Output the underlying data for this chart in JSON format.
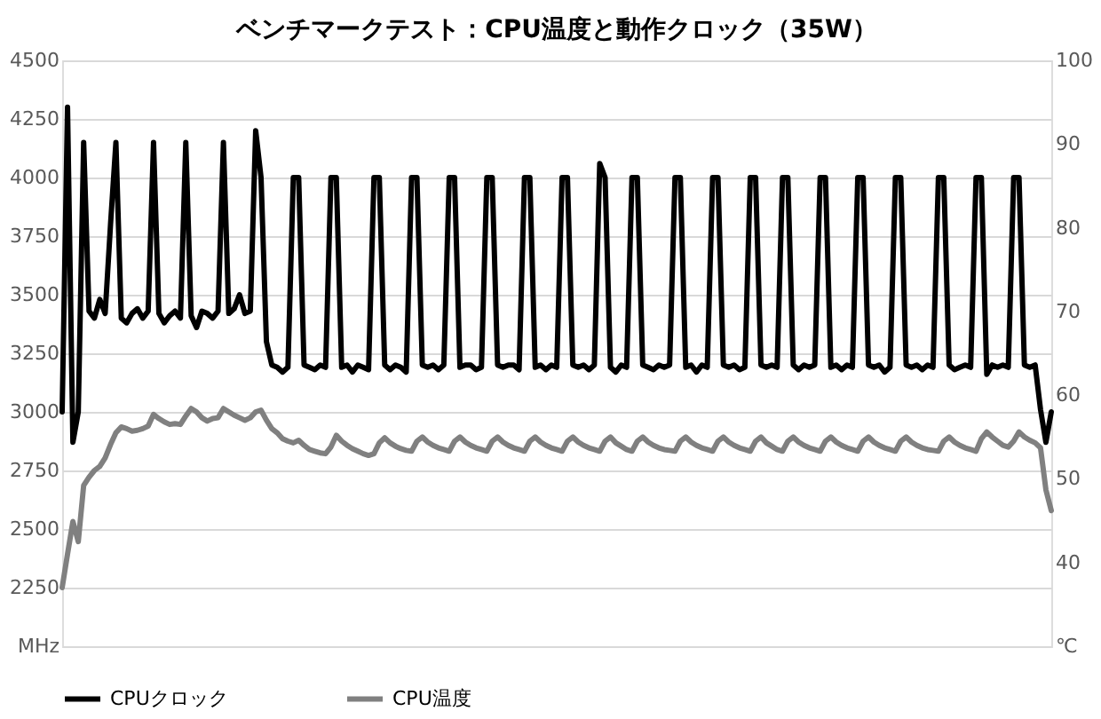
{
  "chart_data": {
    "type": "line",
    "title": "ベンチマークテスト：CPU温度と動作クロック（35W）",
    "categories": [
      null,
      null,
      null,
      null,
      null,
      null,
      null,
      null,
      null,
      null,
      null,
      null,
      null,
      null,
      null,
      null,
      null,
      null,
      null,
      null,
      null,
      null,
      null,
      null,
      null,
      null,
      null,
      null,
      null,
      null,
      null,
      null,
      null,
      null,
      null,
      null,
      null,
      null,
      null,
      null,
      null,
      null,
      null,
      null,
      null,
      null,
      null,
      null,
      null,
      null,
      null,
      null,
      null,
      null,
      null,
      null,
      null,
      null,
      null,
      null,
      null,
      null,
      null,
      null,
      null,
      null,
      null,
      null,
      null,
      null,
      null,
      null,
      null,
      null,
      null,
      null,
      null,
      null,
      null,
      null,
      null,
      null,
      null,
      null,
      null,
      null,
      null,
      null,
      null,
      null,
      null,
      null,
      null,
      null,
      null,
      null,
      null,
      null,
      null,
      null,
      null,
      null,
      null,
      null,
      null,
      null,
      null,
      null,
      null,
      null,
      null,
      null,
      null,
      null,
      null,
      null,
      null,
      null,
      null,
      null,
      null,
      null,
      null,
      null,
      null,
      null,
      null,
      null,
      null,
      null,
      null,
      null,
      null,
      null,
      null,
      null,
      null,
      null,
      null,
      null,
      null,
      null,
      null,
      null,
      null,
      null,
      null,
      null,
      null,
      null,
      null,
      null,
      null,
      null,
      null,
      null,
      null,
      null,
      null,
      null,
      null,
      null,
      null,
      null,
      null,
      null,
      null,
      null,
      null,
      null,
      null,
      null,
      null,
      null,
      null,
      null,
      null,
      null,
      null,
      null,
      null,
      null,
      null,
      null,
      null
    ],
    "series": [
      {
        "name": "CPUクロック",
        "color": "#000000",
        "values": [
          3000,
          4300,
          2870,
          3000,
          4150,
          3430,
          3400,
          3480,
          3420,
          3800,
          4150,
          3400,
          3380,
          3420,
          3440,
          3400,
          3430,
          4150,
          3420,
          3380,
          3410,
          3430,
          3400,
          4150,
          3410,
          3360,
          3430,
          3420,
          3400,
          3430,
          4150,
          3420,
          3440,
          3500,
          3420,
          3430,
          4200,
          4000,
          3300,
          3200,
          3190,
          3170,
          3190,
          4000,
          4000,
          3200,
          3190,
          3180,
          3200,
          3190,
          4000,
          4000,
          3190,
          3200,
          3170,
          3200,
          3190,
          3180,
          4000,
          4000,
          3200,
          3180,
          3200,
          3190,
          3170,
          4000,
          4000,
          3200,
          3190,
          3200,
          3180,
          3200,
          4000,
          4000,
          3190,
          3200,
          3200,
          3180,
          3190,
          4000,
          4000,
          3200,
          3190,
          3200,
          3200,
          3180,
          4000,
          4000,
          3190,
          3200,
          3180,
          3200,
          3190,
          4000,
          4000,
          3200,
          3190,
          3200,
          3180,
          3200,
          4060,
          4000,
          3190,
          3170,
          3200,
          3190,
          4000,
          4000,
          3200,
          3190,
          3180,
          3200,
          3190,
          3200,
          4000,
          4000,
          3190,
          3200,
          3170,
          3200,
          3190,
          4000,
          4000,
          3200,
          3190,
          3200,
          3180,
          3190,
          4000,
          4000,
          3200,
          3190,
          3200,
          3190,
          4000,
          4000,
          3200,
          3180,
          3200,
          3190,
          3200,
          4000,
          4000,
          3190,
          3200,
          3180,
          3200,
          3190,
          4000,
          4000,
          3200,
          3190,
          3200,
          3170,
          3190,
          4000,
          4000,
          3200,
          3190,
          3200,
          3180,
          3200,
          3190,
          4000,
          4000,
          3200,
          3180,
          3190,
          3200,
          3190,
          4000,
          4000,
          3160,
          3200,
          3190,
          3200,
          3190,
          4000,
          4000,
          3200,
          3190,
          3200,
          3010,
          2870,
          3000
        ]
      },
      {
        "name": "CPU温度",
        "color": "#808080",
        "axis": "y2",
        "values": [
          37.0,
          41.0,
          44.9,
          42.5,
          49.2,
          50.2,
          51.0,
          51.5,
          52.5,
          54.1,
          55.5,
          56.2,
          56.0,
          55.7,
          55.8,
          56.0,
          56.3,
          57.7,
          57.2,
          56.8,
          56.5,
          56.6,
          56.5,
          57.5,
          58.4,
          58.0,
          57.3,
          56.9,
          57.2,
          57.3,
          58.4,
          58.0,
          57.6,
          57.3,
          57.0,
          57.3,
          58.0,
          58.2,
          57.0,
          56.0,
          55.5,
          54.8,
          54.5,
          54.3,
          54.6,
          54.0,
          53.5,
          53.3,
          53.1,
          53.0,
          53.8,
          55.2,
          54.5,
          54.0,
          53.6,
          53.3,
          53.0,
          52.8,
          53.0,
          54.3,
          54.9,
          54.3,
          53.9,
          53.6,
          53.4,
          53.3,
          54.5,
          55.0,
          54.4,
          54.0,
          53.7,
          53.5,
          53.3,
          54.5,
          55.0,
          54.4,
          54.0,
          53.7,
          53.5,
          53.3,
          54.5,
          55.0,
          54.4,
          54.0,
          53.7,
          53.5,
          53.3,
          54.5,
          55.0,
          54.4,
          54.0,
          53.7,
          53.5,
          53.3,
          54.5,
          55.0,
          54.4,
          54.0,
          53.7,
          53.5,
          53.3,
          54.5,
          55.0,
          54.3,
          53.9,
          53.5,
          53.3,
          54.5,
          55.0,
          54.4,
          54.0,
          53.7,
          53.5,
          53.4,
          53.3,
          54.5,
          55.0,
          54.4,
          54.0,
          53.7,
          53.5,
          53.3,
          54.5,
          55.0,
          54.4,
          54.0,
          53.7,
          53.5,
          53.3,
          54.5,
          55.0,
          54.3,
          53.9,
          53.5,
          53.3,
          54.5,
          55.0,
          54.4,
          54.0,
          53.7,
          53.5,
          53.3,
          54.5,
          55.0,
          54.4,
          54.0,
          53.7,
          53.5,
          53.3,
          54.5,
          55.0,
          54.4,
          54.0,
          53.7,
          53.5,
          53.3,
          54.5,
          55.0,
          54.4,
          54.0,
          53.7,
          53.5,
          53.4,
          53.3,
          54.5,
          55.0,
          54.4,
          54.0,
          53.7,
          53.5,
          53.3,
          54.8,
          55.6,
          55.0,
          54.5,
          54.0,
          53.8,
          54.5,
          55.6,
          55.0,
          54.6,
          54.3,
          53.7,
          48.7,
          46.2
        ]
      }
    ],
    "ylim": [
      2000,
      4500
    ],
    "yticks": [
      {
        "value": 2000,
        "label": "MHz"
      },
      2250,
      2500,
      2750,
      3000,
      3250,
      3500,
      3750,
      4000,
      4250,
      4500
    ],
    "y2lim": [
      30,
      100
    ],
    "y2ticks": [
      {
        "value": 30,
        "label": "℃"
      },
      40,
      50,
      60,
      70,
      80,
      90,
      100
    ],
    "grid": "y",
    "legend": "bottom"
  }
}
